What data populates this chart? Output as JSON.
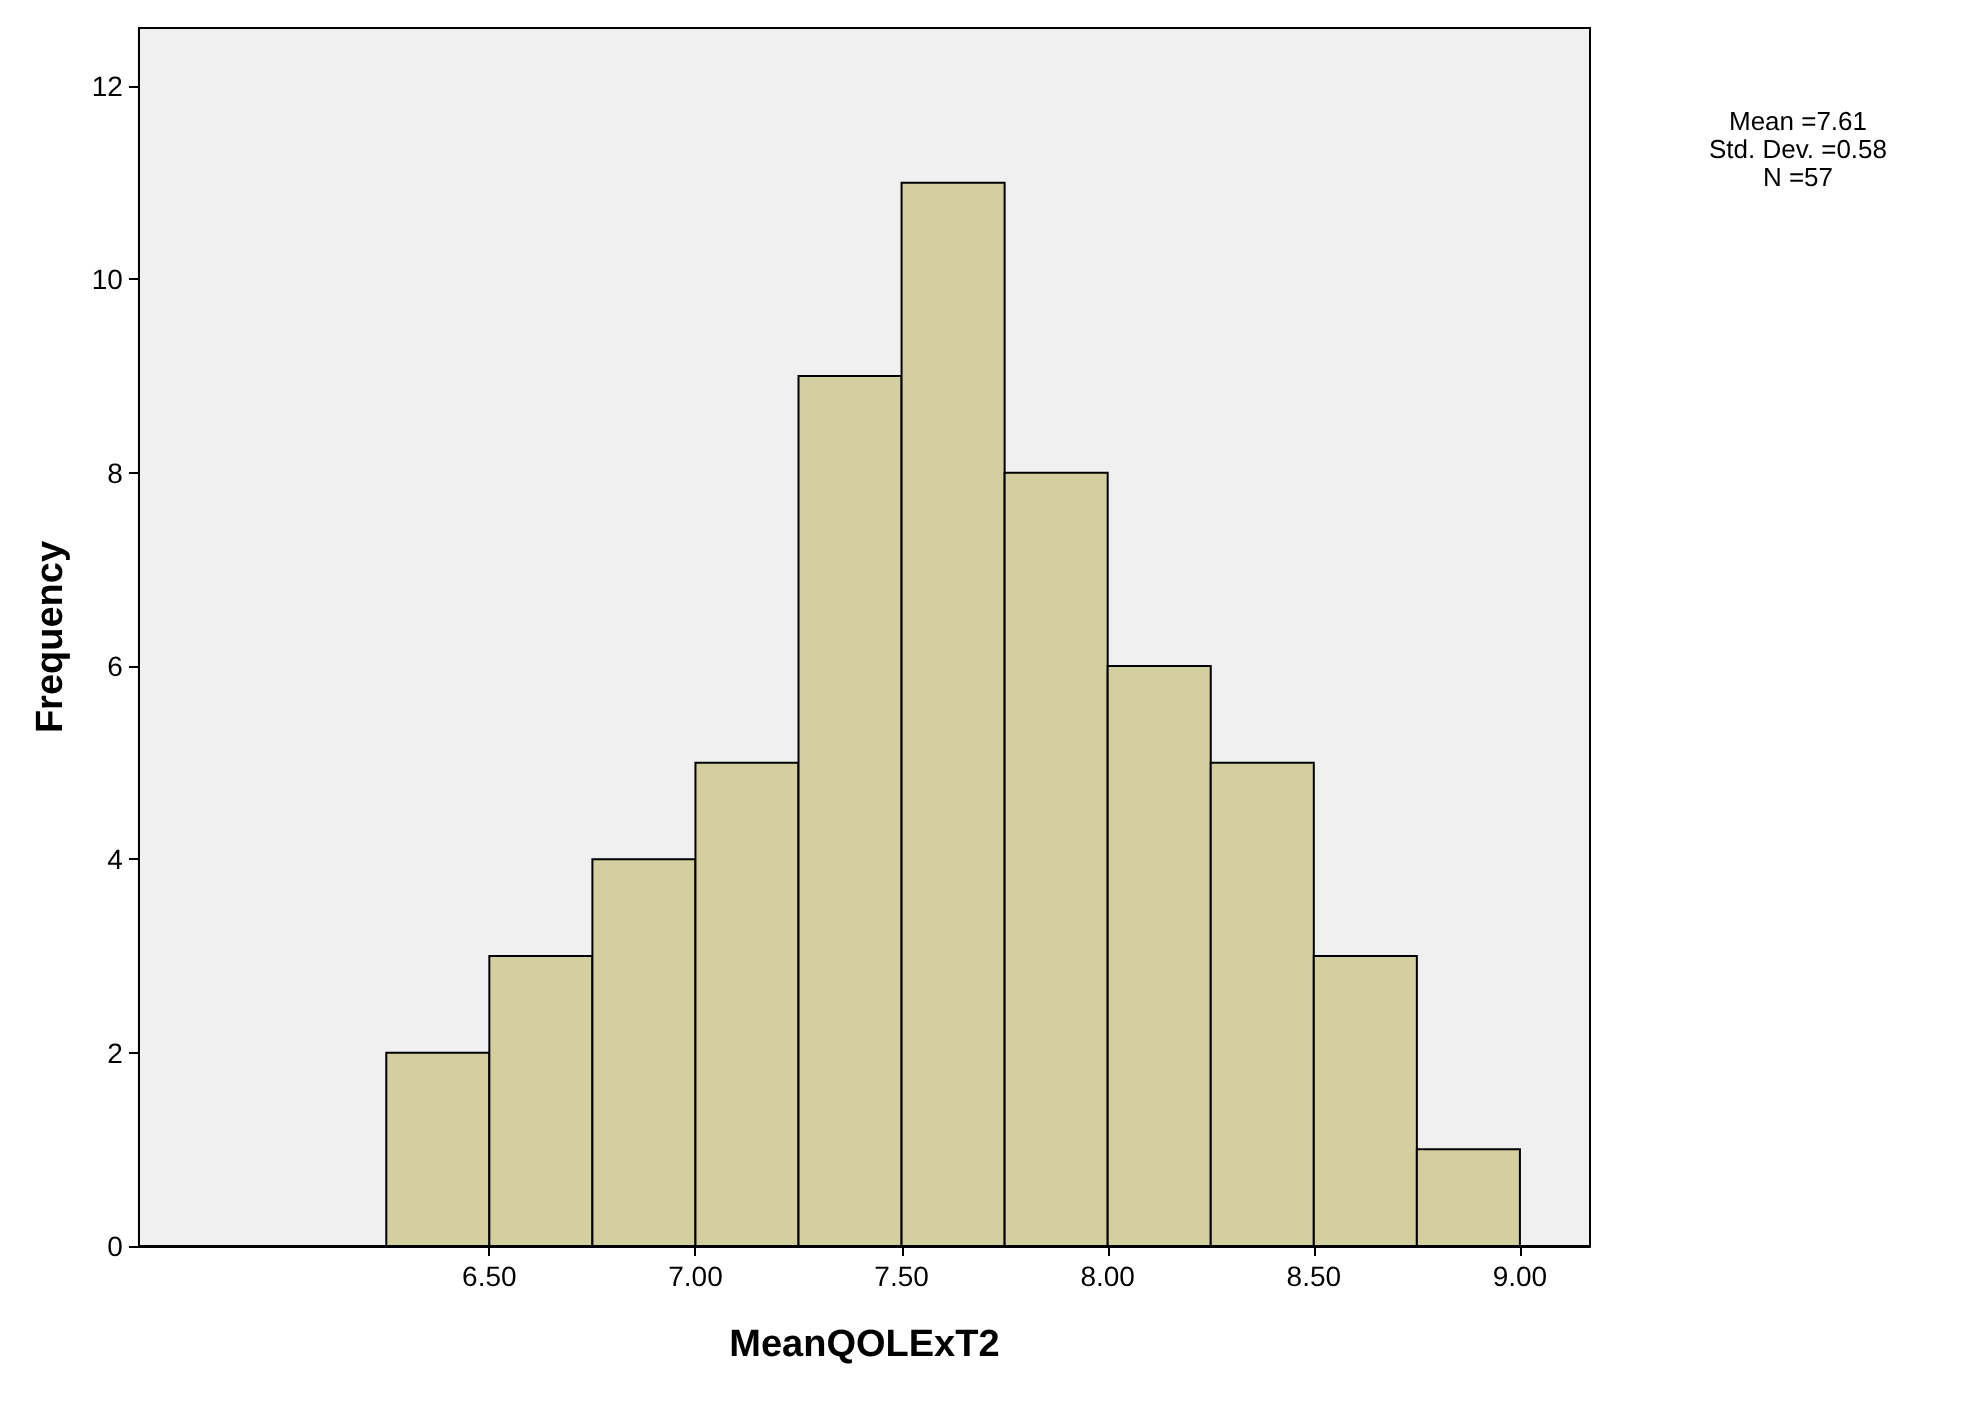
{
  "chart_data": {
    "type": "histogram",
    "xlabel": "MeanQOLExT2",
    "ylabel": "Frequency",
    "bins": [
      6.25,
      6.5,
      6.75,
      7.0,
      7.25,
      7.5,
      7.75,
      8.0,
      8.25,
      8.5,
      8.75,
      9.0
    ],
    "values": [
      2,
      3,
      4,
      5,
      9,
      11,
      8,
      6,
      5,
      3,
      1
    ],
    "color": "#d4cf9e",
    "xlim": [
      5.65,
      9.17
    ],
    "xticks": [
      {
        "value": 6.5,
        "label": "6.50"
      },
      {
        "value": 7.0,
        "label": "7.00"
      },
      {
        "value": 7.5,
        "label": "7.50"
      },
      {
        "value": 8.0,
        "label": "8.00"
      },
      {
        "value": 8.5,
        "label": "8.50"
      },
      {
        "value": 9.0,
        "label": "9.00"
      }
    ],
    "ylim": [
      0,
      12.6
    ],
    "yticks": [
      0,
      2,
      4,
      6,
      8,
      10,
      12
    ],
    "grid": false,
    "annotations": [
      "Mean =7.61",
      "Std. Dev. =0.58",
      "N =57"
    ]
  }
}
